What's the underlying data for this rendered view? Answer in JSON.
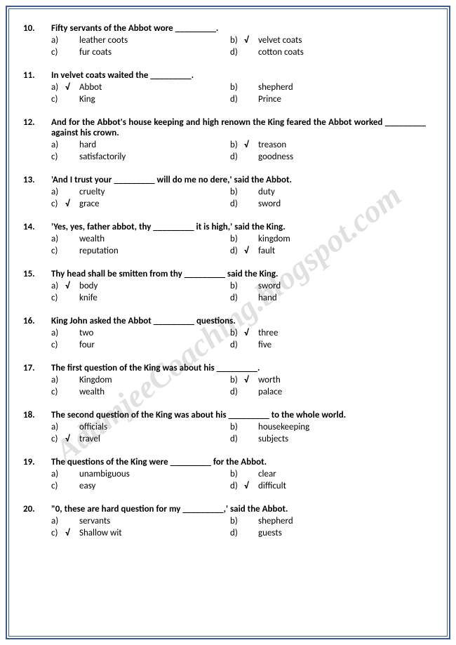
{
  "watermark": "AdamjeeCoaching.blogspot.com",
  "checkmark": "√",
  "questions": [
    {
      "num": "10.",
      "text": "Fifty servants of the Abbot wore _________.",
      "options": [
        {
          "l": "a)",
          "t": "leather coots",
          "c": false
        },
        {
          "l": "b)",
          "t": "velvet coats",
          "c": true
        },
        {
          "l": "c)",
          "t": "fur coats",
          "c": false
        },
        {
          "l": "d)",
          "t": "cotton coats",
          "c": false
        }
      ]
    },
    {
      "num": "11.",
      "text": "In velvet coats waited the _________.",
      "options": [
        {
          "l": "a)",
          "t": "Abbot",
          "c": true
        },
        {
          "l": "b)",
          "t": "shepherd",
          "c": false
        },
        {
          "l": "c)",
          "t": "King",
          "c": false
        },
        {
          "l": "d)",
          "t": "Prince",
          "c": false
        }
      ]
    },
    {
      "num": "12.",
      "text": "And for the Abbot's house keeping and high renown the King feared the Abbot worked _________ against his crown.",
      "options": [
        {
          "l": "a)",
          "t": "hard",
          "c": false
        },
        {
          "l": "b)",
          "t": "treason",
          "c": true
        },
        {
          "l": "c)",
          "t": "satisfactorily",
          "c": false
        },
        {
          "l": "d)",
          "t": "goodness",
          "c": false
        }
      ]
    },
    {
      "num": "13.",
      "text": "'And I trust your _________ will do me no dere,' said the Abbot.",
      "options": [
        {
          "l": "a)",
          "t": "cruelty",
          "c": false
        },
        {
          "l": "b)",
          "t": "duty",
          "c": false
        },
        {
          "l": "c)",
          "t": "grace",
          "c": true
        },
        {
          "l": "d)",
          "t": "sword",
          "c": false
        }
      ]
    },
    {
      "num": "14.",
      "text": "'Yes, yes, father abbot, thy _________ it is high,' said the King.",
      "options": [
        {
          "l": "a)",
          "t": "wealth",
          "c": false
        },
        {
          "l": "b)",
          "t": "kingdom",
          "c": false
        },
        {
          "l": "c)",
          "t": "reputation",
          "c": false
        },
        {
          "l": "d)",
          "t": "fault",
          "c": true
        }
      ]
    },
    {
      "num": "15.",
      "text": "Thy head shall be smitten from thy _________ said the King.",
      "options": [
        {
          "l": "a)",
          "t": "body",
          "c": true
        },
        {
          "l": "b)",
          "t": "sword",
          "c": false
        },
        {
          "l": "c)",
          "t": "knife",
          "c": false
        },
        {
          "l": "d)",
          "t": "hand",
          "c": false
        }
      ]
    },
    {
      "num": "16.",
      "text": "King John asked the Abbot _________ questions.",
      "options": [
        {
          "l": "a)",
          "t": "two",
          "c": false
        },
        {
          "l": "b)",
          "t": "three",
          "c": true
        },
        {
          "l": "c)",
          "t": "four",
          "c": false
        },
        {
          "l": "d)",
          "t": "five",
          "c": false
        }
      ]
    },
    {
      "num": "17.",
      "text": "The first question of the King was about his _________.",
      "options": [
        {
          "l": "a)",
          "t": "Kingdom",
          "c": false
        },
        {
          "l": "b)",
          "t": "worth",
          "c": true
        },
        {
          "l": "c)",
          "t": "wealth",
          "c": false
        },
        {
          "l": "d)",
          "t": "palace",
          "c": false
        }
      ]
    },
    {
      "num": "18.",
      "text": "The second question of the King was about his _________ to the whole world.",
      "options": [
        {
          "l": "a)",
          "t": "officials",
          "c": false
        },
        {
          "l": "b)",
          "t": "housekeeping",
          "c": false
        },
        {
          "l": "c)",
          "t": "travel",
          "c": true
        },
        {
          "l": "d)",
          "t": "subjects",
          "c": false
        }
      ]
    },
    {
      "num": "19.",
      "text": "The questions of the King were _________ for the Abbot.",
      "options": [
        {
          "l": "a)",
          "t": "unambiguous",
          "c": false
        },
        {
          "l": "b)",
          "t": "clear",
          "c": false
        },
        {
          "l": "c)",
          "t": "easy",
          "c": false
        },
        {
          "l": "d)",
          "t": "difficult",
          "c": true
        }
      ]
    },
    {
      "num": "20.",
      "text": "\"0, these are hard question for my _________,' said the Abbot.",
      "options": [
        {
          "l": "a)",
          "t": "servants",
          "c": false
        },
        {
          "l": "b)",
          "t": "shepherd",
          "c": false
        },
        {
          "l": "c)",
          "t": "Shallow wit",
          "c": true
        },
        {
          "l": "d)",
          "t": "guests",
          "c": false
        }
      ]
    }
  ]
}
